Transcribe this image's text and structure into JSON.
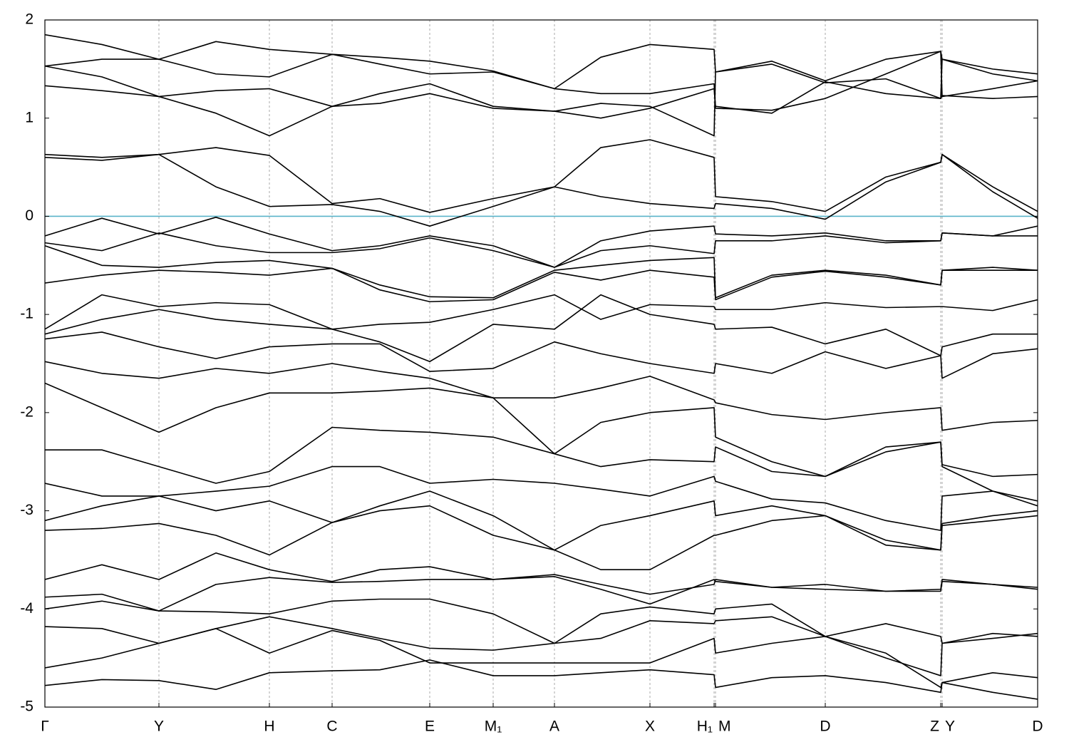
{
  "chart_data": {
    "type": "line",
    "color": "#000000",
    "fermi_level": 0,
    "fermi_color": "#5ab4c9",
    "grid": true,
    "xlim": [
      0,
      1.393
    ],
    "ylim": [
      -5,
      2
    ],
    "yticks": [
      2,
      1,
      0,
      -1,
      -2,
      -3,
      -4,
      -5
    ],
    "xticks": [
      {
        "value": 0,
        "label": "Γ"
      },
      {
        "value": 0.16,
        "label": "Y"
      },
      {
        "value": 0.315,
        "label": "H"
      },
      {
        "value": 0.403,
        "label": "C"
      },
      {
        "value": 0.54,
        "label": "E"
      },
      {
        "value": 0.629,
        "label": "M₁"
      },
      {
        "value": 0.715,
        "label": "A"
      },
      {
        "value": 0.849,
        "label": "X"
      },
      {
        "value": 0.939,
        "label": "H₁"
      },
      {
        "value": 0.941,
        "label": "M"
      },
      {
        "value": 1.095,
        "label": "D"
      },
      {
        "value": 1.257,
        "label": "Z"
      },
      {
        "value": 1.259,
        "label": "Y"
      },
      {
        "value": 1.393,
        "label": "D"
      }
    ],
    "x": [
      0,
      0.08,
      0.16,
      0.24,
      0.315,
      0.403,
      0.47,
      0.54,
      0.629,
      0.715,
      0.78,
      0.849,
      0.939,
      0.941,
      1.02,
      1.095,
      1.18,
      1.257,
      1.259,
      1.33,
      1.393
    ],
    "series": [
      {
        "values": [
          1.85,
          1.75,
          1.6,
          1.45,
          1.42,
          1.65,
          1.62,
          1.58,
          1.48,
          1.3,
          1.62,
          1.75,
          1.7,
          1.47,
          1.58,
          1.38,
          1.6,
          1.68,
          1.6,
          1.5,
          1.45
        ]
      },
      {
        "values": [
          1.53,
          1.6,
          1.6,
          1.78,
          1.7,
          1.65,
          1.55,
          1.45,
          1.47,
          1.3,
          1.25,
          1.25,
          1.35,
          1.1,
          1.08,
          1.2,
          1.45,
          1.68,
          1.22,
          1.3,
          1.38
        ]
      },
      {
        "values": [
          1.33,
          1.28,
          1.22,
          1.05,
          0.82,
          1.12,
          1.25,
          1.35,
          1.12,
          1.07,
          1.0,
          1.1,
          1.3,
          1.12,
          1.05,
          1.37,
          1.25,
          1.2,
          1.23,
          1.2,
          1.22
        ]
      },
      {
        "values": [
          1.53,
          1.42,
          1.22,
          1.28,
          1.3,
          1.12,
          1.15,
          1.25,
          1.1,
          1.07,
          1.15,
          1.12,
          0.82,
          1.47,
          1.55,
          1.36,
          1.4,
          1.2,
          1.6,
          1.45,
          1.38
        ]
      },
      {
        "values": [
          0.63,
          0.6,
          0.63,
          0.7,
          0.62,
          0.13,
          0.18,
          0.04,
          0.18,
          0.3,
          0.7,
          0.78,
          0.6,
          0.2,
          0.15,
          0.05,
          0.4,
          0.55,
          0.63,
          0.3,
          0.05
        ]
      },
      {
        "values": [
          0.6,
          0.57,
          0.63,
          0.3,
          0.1,
          0.12,
          0.05,
          -0.1,
          0.1,
          0.3,
          0.2,
          0.13,
          0.08,
          0.13,
          0.08,
          -0.03,
          0.35,
          0.55,
          0.63,
          0.25,
          -0.02
        ]
      },
      {
        "values": [
          -0.2,
          -0.02,
          -0.18,
          -0.01,
          -0.18,
          -0.35,
          -0.3,
          -0.2,
          -0.3,
          -0.52,
          -0.25,
          -0.15,
          -0.1,
          -0.18,
          -0.2,
          -0.17,
          -0.25,
          -0.25,
          -0.17,
          -0.2,
          -0.1
        ]
      },
      {
        "values": [
          -0.27,
          -0.35,
          -0.17,
          -0.3,
          -0.37,
          -0.37,
          -0.33,
          -0.22,
          -0.35,
          -0.52,
          -0.35,
          -0.3,
          -0.38,
          -0.25,
          -0.25,
          -0.2,
          -0.27,
          -0.25,
          -0.17,
          -0.2,
          -0.2
        ]
      },
      {
        "values": [
          -0.3,
          -0.5,
          -0.52,
          -0.47,
          -0.45,
          -0.53,
          -0.7,
          -0.82,
          -0.83,
          -0.55,
          -0.5,
          -0.45,
          -0.42,
          -0.83,
          -0.6,
          -0.55,
          -0.6,
          -0.7,
          -0.55,
          -0.52,
          -0.55
        ]
      },
      {
        "values": [
          -0.68,
          -0.6,
          -0.55,
          -0.57,
          -0.6,
          -0.53,
          -0.75,
          -0.87,
          -0.85,
          -0.57,
          -0.65,
          -0.55,
          -0.62,
          -0.85,
          -0.62,
          -0.56,
          -0.62,
          -0.7,
          -0.55,
          -0.55,
          -0.55
        ]
      },
      {
        "values": [
          -1.15,
          -0.8,
          -0.92,
          -0.88,
          -0.9,
          -1.15,
          -1.1,
          -1.08,
          -0.95,
          -0.8,
          -1.05,
          -0.9,
          -0.92,
          -0.95,
          -0.95,
          -0.88,
          -0.93,
          -0.92,
          -0.92,
          -0.96,
          -0.85
        ]
      },
      {
        "values": [
          -1.2,
          -1.05,
          -0.95,
          -1.05,
          -1.1,
          -1.15,
          -1.28,
          -1.48,
          -1.1,
          -1.15,
          -0.8,
          -1.0,
          -1.1,
          -1.15,
          -1.13,
          -1.3,
          -1.15,
          -1.42,
          -1.33,
          -1.2,
          -1.2
        ]
      },
      {
        "values": [
          -1.25,
          -1.18,
          -1.33,
          -1.45,
          -1.33,
          -1.3,
          -1.3,
          -1.58,
          -1.55,
          -1.28,
          -1.4,
          -1.5,
          -1.6,
          -1.5,
          -1.6,
          -1.38,
          -1.55,
          -1.42,
          -1.65,
          -1.4,
          -1.35
        ]
      },
      {
        "values": [
          -1.48,
          -1.6,
          -1.65,
          -1.55,
          -1.6,
          -1.5,
          -1.58,
          -1.65,
          -1.85,
          -1.85,
          -1.75,
          -1.63,
          -1.87,
          -1.9,
          -2.02,
          -2.07,
          -2.0,
          -1.95,
          -2.18,
          -2.1,
          -2.08
        ]
      },
      {
        "values": [
          -1.7,
          -1.95,
          -2.2,
          -1.95,
          -1.8,
          -1.8,
          -1.78,
          -1.75,
          -1.85,
          -2.42,
          -2.1,
          -2.0,
          -1.95,
          -2.25,
          -2.5,
          -2.65,
          -2.35,
          -2.3,
          -2.53,
          -2.65,
          -2.63
        ]
      },
      {
        "values": [
          -2.38,
          -2.38,
          -2.55,
          -2.72,
          -2.6,
          -2.15,
          -2.18,
          -2.2,
          -2.25,
          -2.42,
          -2.55,
          -2.48,
          -2.5,
          -2.35,
          -2.6,
          -2.65,
          -2.4,
          -2.3,
          -2.55,
          -2.8,
          -2.9
        ]
      },
      {
        "values": [
          -2.72,
          -2.85,
          -2.85,
          -2.8,
          -2.75,
          -2.55,
          -2.55,
          -2.72,
          -2.68,
          -2.72,
          -2.78,
          -2.85,
          -2.65,
          -2.7,
          -2.88,
          -2.92,
          -3.1,
          -3.2,
          -2.85,
          -2.8,
          -2.95
        ]
      },
      {
        "values": [
          -3.1,
          -2.95,
          -2.85,
          -3.0,
          -2.9,
          -3.12,
          -2.95,
          -2.8,
          -3.05,
          -3.4,
          -3.15,
          -3.05,
          -2.9,
          -3.05,
          -2.95,
          -3.05,
          -3.3,
          -3.4,
          -3.13,
          -3.05,
          -3.0
        ]
      },
      {
        "values": [
          -3.2,
          -3.18,
          -3.13,
          -3.25,
          -3.45,
          -3.12,
          -3.0,
          -2.95,
          -3.25,
          -3.4,
          -3.6,
          -3.6,
          -3.25,
          -3.25,
          -3.1,
          -3.05,
          -3.35,
          -3.4,
          -3.15,
          -3.1,
          -3.05
        ]
      },
      {
        "values": [
          -3.7,
          -3.55,
          -3.7,
          -3.43,
          -3.6,
          -3.72,
          -3.6,
          -3.57,
          -3.7,
          -3.67,
          -3.8,
          -3.95,
          -3.7,
          -3.72,
          -3.78,
          -3.8,
          -3.82,
          -3.8,
          -3.7,
          -3.75,
          -3.78
        ]
      },
      {
        "values": [
          -3.88,
          -3.85,
          -4.02,
          -3.75,
          -3.68,
          -3.73,
          -3.72,
          -3.7,
          -3.7,
          -3.65,
          -3.75,
          -3.85,
          -3.75,
          -3.7,
          -3.78,
          -3.75,
          -3.82,
          -3.82,
          -3.72,
          -3.75,
          -3.8
        ]
      },
      {
        "values": [
          -4.0,
          -3.92,
          -4.02,
          -4.03,
          -4.05,
          -3.92,
          -3.9,
          -3.9,
          -4.05,
          -4.35,
          -4.05,
          -3.98,
          -4.05,
          -4.0,
          -3.95,
          -4.28,
          -4.5,
          -4.68,
          -4.35,
          -4.3,
          -4.25
        ]
      },
      {
        "values": [
          -4.18,
          -4.2,
          -4.35,
          -4.2,
          -4.08,
          -4.2,
          -4.3,
          -4.4,
          -4.42,
          -4.35,
          -4.3,
          -4.12,
          -4.15,
          -4.12,
          -4.08,
          -4.28,
          -4.15,
          -4.28,
          -4.35,
          -4.25,
          -4.28
        ]
      },
      {
        "values": [
          -4.6,
          -4.5,
          -4.35,
          -4.2,
          -4.45,
          -4.22,
          -4.32,
          -4.55,
          -4.55,
          -4.55,
          -4.55,
          -4.55,
          -4.3,
          -4.45,
          -4.35,
          -4.28,
          -4.45,
          -4.8,
          -4.75,
          -4.65,
          -4.7
        ]
      },
      {
        "values": [
          -4.78,
          -4.72,
          -4.73,
          -4.82,
          -4.65,
          -4.63,
          -4.62,
          -4.52,
          -4.68,
          -4.68,
          -4.65,
          -4.62,
          -4.67,
          -4.8,
          -4.7,
          -4.68,
          -4.75,
          -4.85,
          -4.75,
          -4.85,
          -4.92
        ]
      }
    ]
  }
}
